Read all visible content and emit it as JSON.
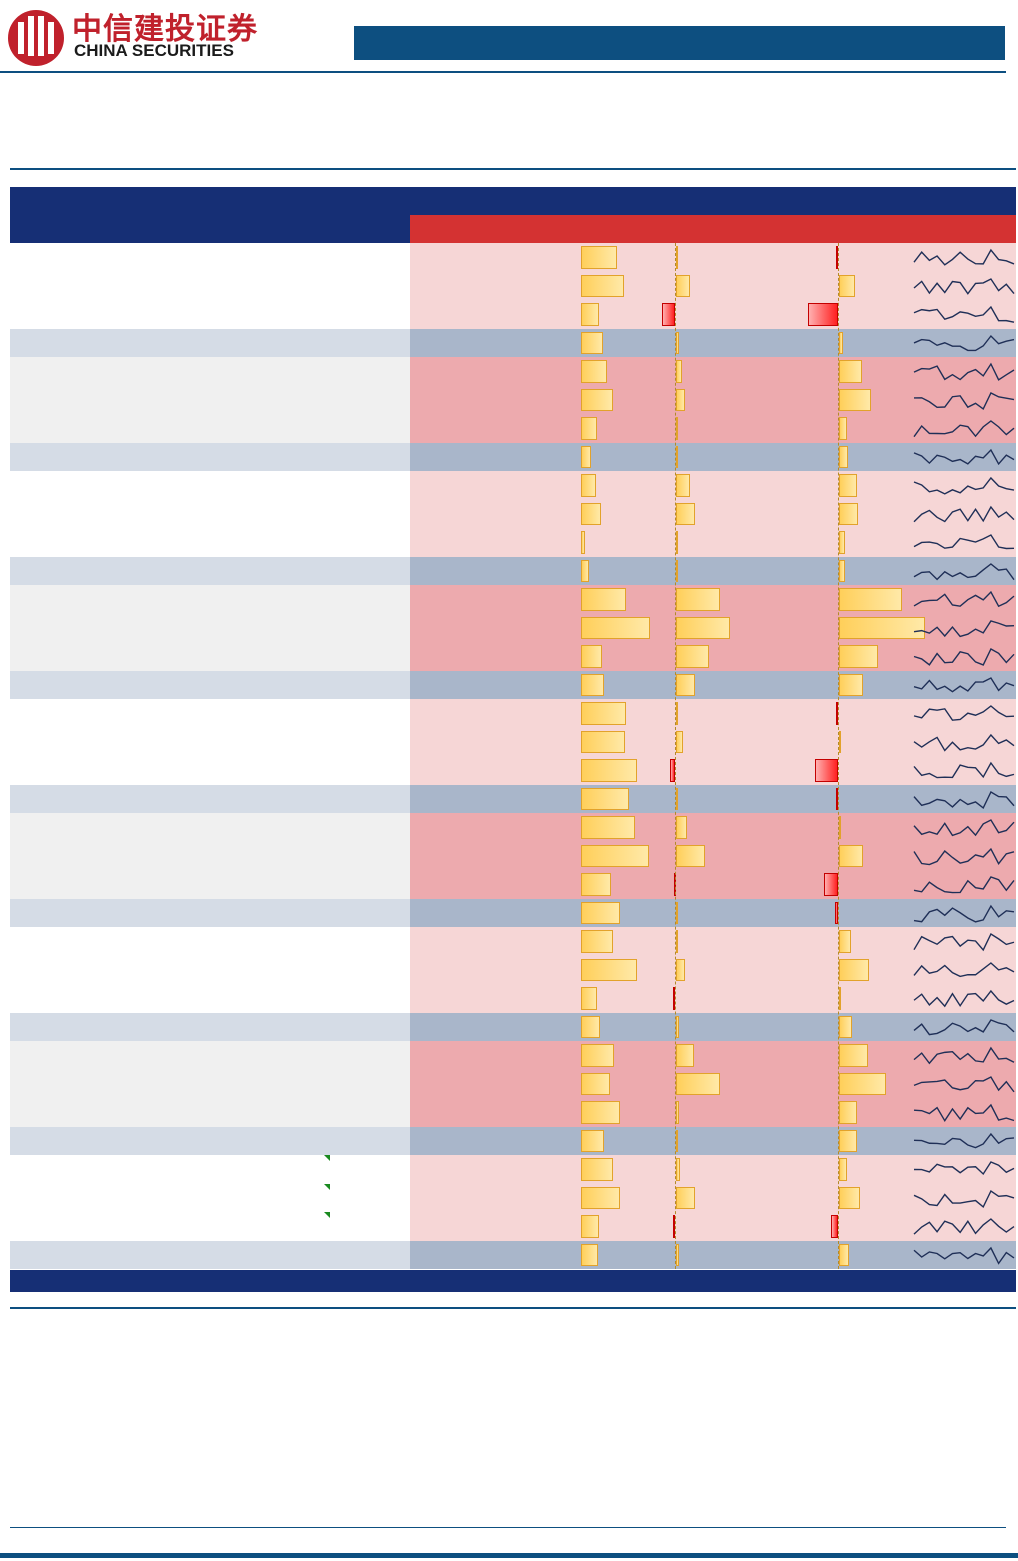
{
  "brand": {
    "name_cn": "中信建投证券",
    "name_en": "CHINA SECURITIES"
  },
  "colors": {
    "brand_blue": "#0d4f80",
    "table_header": "#162f75",
    "header_red": "#d43232",
    "row_light_pink": "#f6d6d6",
    "row_dark_pink": "#edaaae",
    "row_light_gray_left": "#f0f0f0",
    "row_summary_left": "#d5dce6",
    "row_summary_right": "#a9b6ca",
    "bar_positive": "#ffcf5a",
    "bar_negative": "#ff2020",
    "sparkline": "#1f2f57"
  },
  "chart_data": {
    "type": "table",
    "description_columns": [
      "bar_col_1",
      "bar_col_2",
      "bar_col_3",
      "sparkline"
    ],
    "groups": [
      {
        "rows": [
          [
            0.36,
            0,
            -0.02
          ],
          [
            0.43,
            0.13,
            0.16
          ],
          [
            0.18,
            -0.12,
            -0.3
          ]
        ],
        "summary": [
          0.22,
          0.03,
          0.04
        ]
      },
      {
        "rows": [
          [
            0.26,
            0.05,
            0.23
          ],
          [
            0.32,
            0.08,
            0.32
          ],
          [
            0.16,
            0.01,
            0.08
          ]
        ],
        "summary": [
          0.1,
          0.01,
          0.09
        ]
      },
      {
        "rows": [
          [
            0.15,
            0.13,
            0.18
          ],
          [
            0.2,
            0.17,
            0.19
          ],
          [
            0.04,
            0.02,
            0.06
          ]
        ],
        "summary": [
          0.08,
          0.01,
          0.06
        ]
      },
      {
        "rows": [
          [
            0.45,
            0.4,
            0.63
          ],
          [
            0.69,
            0.49,
            0.86
          ],
          [
            0.21,
            0.3,
            0.39
          ]
        ],
        "summary": [
          0.23,
          0.17,
          0.24
        ]
      },
      {
        "rows": [
          [
            0.45,
            0.02,
            -0.02
          ],
          [
            0.44,
            0.06,
            0
          ],
          [
            0.56,
            -0.05,
            -0.23
          ]
        ],
        "summary": [
          0.48,
          0.01,
          -0.02
        ]
      },
      {
        "rows": [
          [
            0.54,
            0.1,
            0.02
          ],
          [
            0.68,
            0.26,
            0.24
          ],
          [
            0.3,
            -0.01,
            -0.14
          ]
        ],
        "summary": [
          0.39,
          0,
          -0.03
        ]
      },
      {
        "rows": [
          [
            0.32,
            0,
            0.12
          ],
          [
            0.56,
            0.08,
            0.3
          ],
          [
            0.16,
            -0.02,
            0.02
          ]
        ],
        "summary": [
          0.19,
          0.03,
          0.13
        ]
      },
      {
        "rows": [
          [
            0.33,
            0.16,
            0.29
          ],
          [
            0.29,
            0.4,
            0.47
          ],
          [
            0.39,
            0.03,
            0.18
          ]
        ],
        "summary": [
          0.23,
          0,
          0.18
        ]
      },
      {
        "rows": [
          [
            0.32,
            0.04,
            0.08
          ],
          [
            0.39,
            0.17,
            0.21
          ],
          [
            0.18,
            -0.02,
            -0.07
          ]
        ],
        "summary": [
          0.17,
          0.03,
          0.1
        ]
      }
    ],
    "sparkline_rows": 36
  }
}
